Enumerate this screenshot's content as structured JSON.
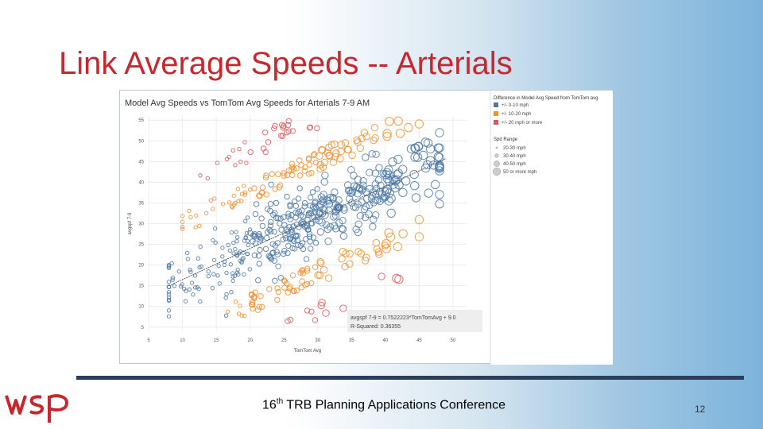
{
  "slide": {
    "title": "Link Average Speeds -- Arterials",
    "footer_num": "16",
    "footer_sup": "th",
    "footer_rest": " TRB Planning Applications Conference",
    "page_number": "12"
  },
  "brand": {
    "accent": "#c8282d",
    "logo_text": "wsp"
  },
  "chart_data": {
    "type": "scatter",
    "title": "Model Avg Speeds vs TomTom Avg Speeds for Arterials 7-9 AM",
    "xlabel": "TomTom Avg",
    "ylabel": "avgspf 7-9",
    "xlim": [
      5,
      52
    ],
    "ylim": [
      4,
      56
    ],
    "xticks": [
      5,
      10,
      15,
      20,
      25,
      30,
      35,
      40,
      45,
      50
    ],
    "yticks": [
      5,
      10,
      15,
      20,
      25,
      30,
      35,
      40,
      45,
      50,
      55
    ],
    "grid": true,
    "trendline": {
      "slope": 0.75,
      "intercept": 9.0
    },
    "annotation": {
      "line1": "avgspf 7-9 = 0.7522223*TomTomAvg + 9.0",
      "line2": "R-Squared: 0.36355"
    },
    "legend": {
      "color_title": "Difference in Model Avg Speed from TomTom avg",
      "color_items": [
        {
          "label": "+/- 0-10 mph",
          "color": "#4e79a7"
        },
        {
          "label": "+/- 10-20 mph",
          "color": "#f28e2b"
        },
        {
          "label": "+/- 20 mph or more",
          "color": "#e15759"
        }
      ],
      "size_title": "Spd Range",
      "size_items": [
        {
          "label": "20-30 mph"
        },
        {
          "label": "30-40 mph"
        },
        {
          "label": "40-50 mph"
        },
        {
          "label": "50 or more mph"
        }
      ]
    },
    "point_clusters": [
      {
        "color": "#4e79a7",
        "note": "within 10 mph, along trend line",
        "x_range": [
          8,
          48
        ],
        "count": 420
      },
      {
        "color": "#f28e2b",
        "note": "10-20 mph difference",
        "x_range": [
          10,
          45
        ],
        "count": 190
      },
      {
        "color": "#e15759",
        "note": "20+ mph difference",
        "x_range": [
          12,
          42
        ],
        "count": 70
      }
    ]
  }
}
